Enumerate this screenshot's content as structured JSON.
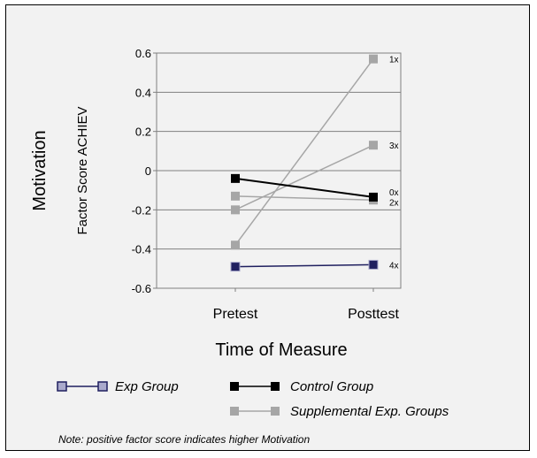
{
  "chart_data": {
    "type": "line",
    "title": "",
    "ylabel": "Motivation",
    "ylabel_sub": "Factor Score ACHIEV",
    "xlabel": "Time of Measure",
    "categories": [
      "Pretest",
      "Posttest"
    ],
    "ylim": [
      -0.6,
      0.6
    ],
    "yticks": [
      0.6,
      0.4,
      0.2,
      0,
      -0.2,
      -0.4,
      -0.6
    ],
    "ytick_labels": [
      "0.6",
      "0.4",
      "0.2",
      "0",
      "-0.2",
      "-0.4",
      "-0.6"
    ],
    "grid": true,
    "series": [
      {
        "label": "1x",
        "group": "Supplemental Exp. Groups",
        "values": [
          -0.38,
          0.57
        ],
        "color": "#a6a6a6"
      },
      {
        "label": "3x",
        "group": "Supplemental Exp. Groups",
        "values": [
          -0.2,
          0.13
        ],
        "color": "#a6a6a6"
      },
      {
        "label": "2x",
        "group": "Supplemental Exp. Groups",
        "values": [
          -0.13,
          -0.15
        ],
        "color": "#a6a6a6"
      },
      {
        "label": "0x",
        "group": "Control Group",
        "values": [
          -0.04,
          -0.135
        ],
        "color": "#000000"
      },
      {
        "label": "4x",
        "group": "Exp Group",
        "values": [
          -0.49,
          -0.48
        ],
        "color": "#1f1f5f"
      }
    ],
    "legend": [
      {
        "text": "Exp Group",
        "color": "#1f1f5f"
      },
      {
        "text": "Control Group",
        "color": "#000000"
      },
      {
        "text": "Supplemental Exp. Groups",
        "color": "#a6a6a6"
      }
    ],
    "legend_position": "bottom",
    "note": "Note: positive factor score indicates higher Motivation"
  }
}
